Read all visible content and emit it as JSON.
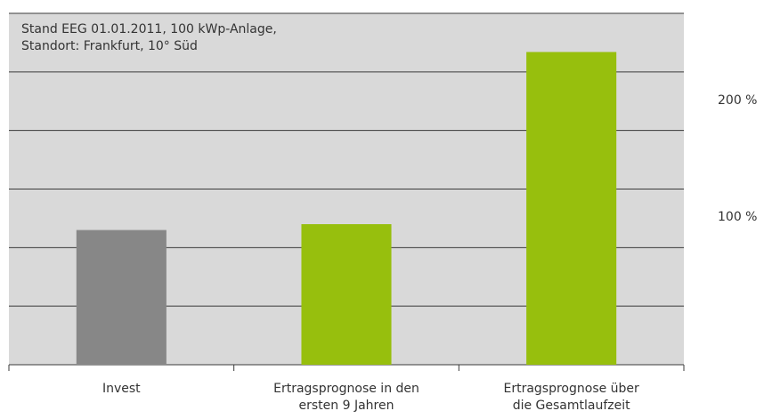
{
  "chart_data": {
    "type": "bar",
    "annotation": "Stand EEG 01.01.2011, 100 kWp-Anlage,\nStandort: Frankfurt, 10° Süd",
    "categories": [
      "Invest",
      "Ertragsprognose in den\nersten 9 Jahren",
      "Ertragsprognose über\ndie Gesamtlaufzeit"
    ],
    "values": [
      115,
      120,
      267
    ],
    "colors": [
      "#878787",
      "#97bf0d",
      "#97bf0d"
    ],
    "ylim": [
      0,
      300
    ],
    "yticks": [
      {
        "value": 100,
        "label": "100 %"
      },
      {
        "value": 200,
        "label": "200 %"
      }
    ],
    "ygrid": [
      50,
      100,
      150,
      200,
      250,
      300
    ],
    "grid": true
  }
}
